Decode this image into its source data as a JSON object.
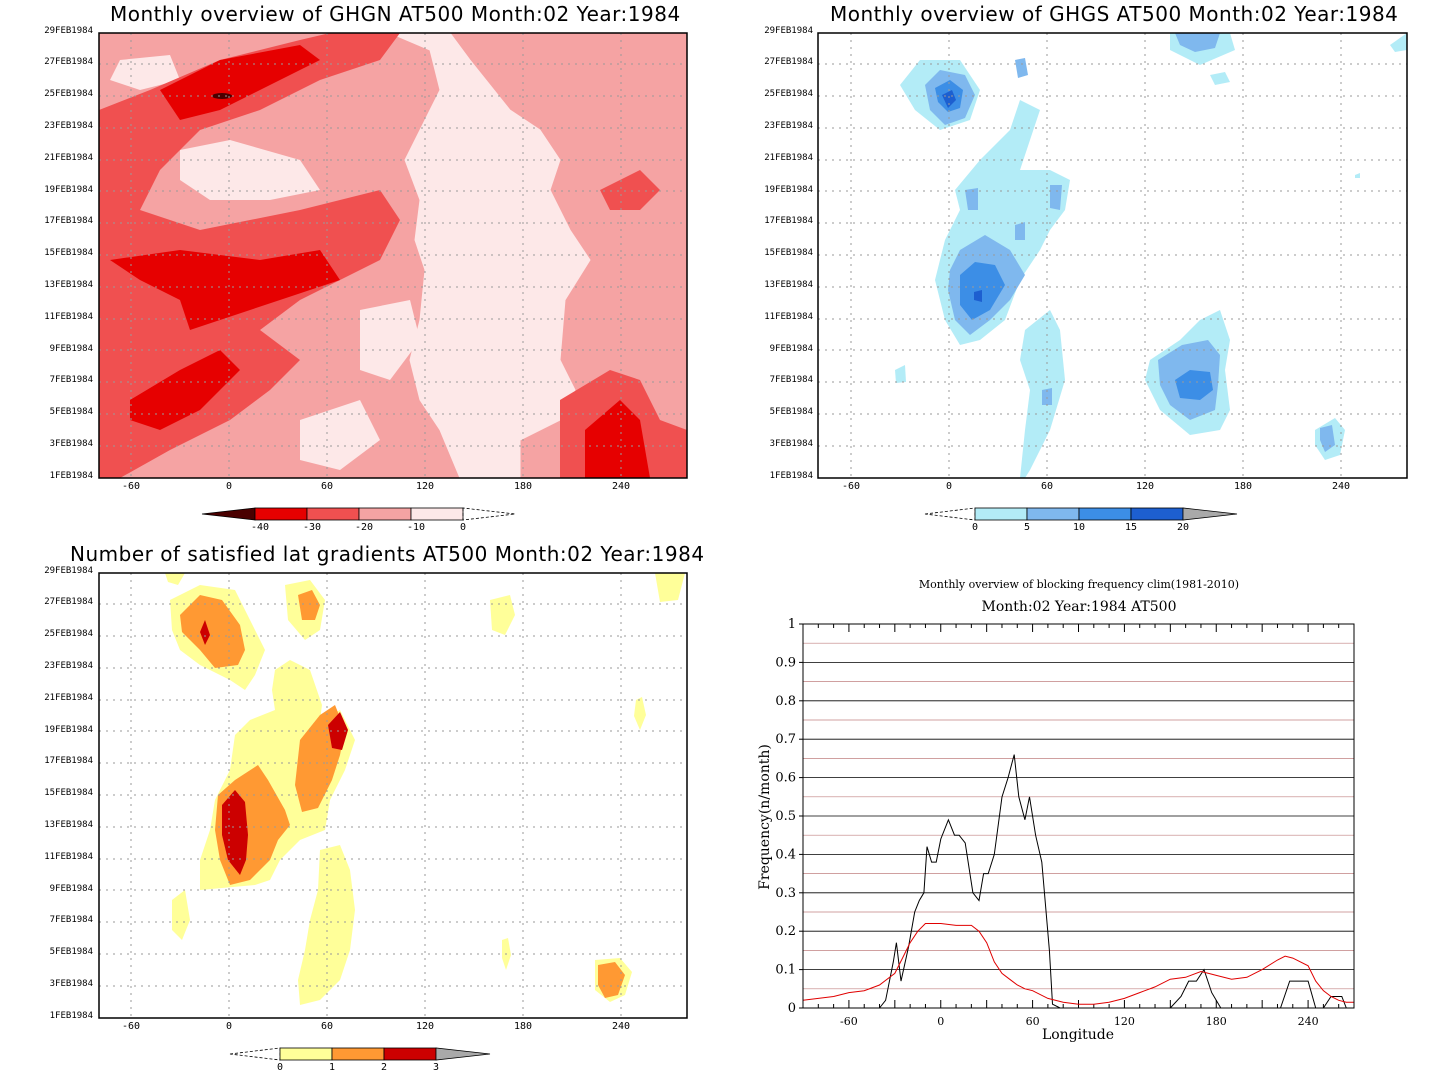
{
  "chart_data": [
    {
      "type": "heatmap",
      "title": "Monthly overview of GHGN AT500 Month:02 Year:1984",
      "xticks": [
        "-60",
        "0",
        "60",
        "120",
        "180",
        "240"
      ],
      "yticks": [
        "1FEB1984",
        "3FEB1984",
        "5FEB1984",
        "7FEB1984",
        "9FEB1984",
        "11FEB1984",
        "13FEB1984",
        "15FEB1984",
        "17FEB1984",
        "19FEB1984",
        "21FEB1984",
        "23FEB1984",
        "25FEB1984",
        "27FEB1984",
        "29FEB1984"
      ],
      "xlim": [
        -80,
        280
      ],
      "colorbar": {
        "labels": [
          "-40",
          "-30",
          "-20",
          "-10",
          "0"
        ],
        "colors": [
          "#4a0000",
          "#e60000",
          "#f05050",
          "#f5a3a3",
          "#fde8e8"
        ]
      }
    },
    {
      "type": "heatmap",
      "title": "Monthly overview of GHGS AT500 Month:02 Year:1984",
      "xticks": [
        "-60",
        "0",
        "60",
        "120",
        "180",
        "240"
      ],
      "yticks": [
        "1FEB1984",
        "3FEB1984",
        "5FEB1984",
        "7FEB1984",
        "9FEB1984",
        "11FEB1984",
        "13FEB1984",
        "15FEB1984",
        "17FEB1984",
        "19FEB1984",
        "21FEB1984",
        "23FEB1984",
        "25FEB1984",
        "27FEB1984",
        "29FEB1984"
      ],
      "xlim": [
        -80,
        280
      ],
      "colorbar": {
        "labels": [
          "0",
          "5",
          "10",
          "15",
          "20"
        ],
        "colors": [
          "#b3ecf7",
          "#7fb8ee",
          "#3c8ee6",
          "#1d5fd0",
          "#a9a9a9"
        ]
      }
    },
    {
      "type": "heatmap",
      "title": "Number of satisfied lat gradients AT500 Month:02 Year:1984",
      "xticks": [
        "-60",
        "0",
        "60",
        "120",
        "180",
        "240"
      ],
      "yticks": [
        "1FEB1984",
        "3FEB1984",
        "5FEB1984",
        "7FEB1984",
        "9FEB1984",
        "11FEB1984",
        "13FEB1984",
        "15FEB1984",
        "17FEB1984",
        "19FEB1984",
        "21FEB1984",
        "23FEB1984",
        "25FEB1984",
        "27FEB1984",
        "29FEB1984"
      ],
      "xlim": [
        -80,
        280
      ],
      "colorbar": {
        "labels": [
          "0",
          "1",
          "2",
          "3"
        ],
        "colors": [
          "#ffff99",
          "#ff9933",
          "#cc0000",
          "#a9a9a9"
        ]
      }
    },
    {
      "type": "line",
      "title": "Monthly overview of blocking frequency clim(1981-2010)",
      "subtitle": "Month:02 Year:1984  AT500",
      "xlabel": "Longitude",
      "ylabel": "Frequency(n/month)",
      "xlim": [
        -90,
        270
      ],
      "ylim": [
        0,
        1
      ],
      "xticks": [
        "-60",
        "0",
        "60",
        "120",
        "180",
        "240"
      ],
      "yticks": [
        "0",
        "0.1",
        "0.2",
        "0.3",
        "0.4",
        "0.5",
        "0.6",
        "0.7",
        "0.8",
        "0.9",
        "1"
      ],
      "grid": true,
      "series": [
        {
          "color": "#000000",
          "x": [
            -40,
            -36,
            -31,
            -29,
            -26,
            -21,
            -17,
            -14,
            -11,
            -9,
            -6,
            -3,
            0,
            5,
            9,
            12,
            16,
            21,
            25,
            28,
            31,
            35,
            40,
            44,
            48,
            51,
            55,
            58,
            62,
            66,
            71,
            73,
            78,
            90,
            110,
            130,
            150,
            157,
            162,
            167,
            172,
            177,
            183,
            200,
            215,
            222,
            228,
            235,
            240,
            245,
            250,
            255,
            258,
            262,
            265
          ],
          "y": [
            0,
            0.02,
            0.12,
            0.17,
            0.07,
            0.16,
            0.25,
            0.28,
            0.3,
            0.42,
            0.38,
            0.38,
            0.44,
            0.49,
            0.45,
            0.45,
            0.43,
            0.3,
            0.28,
            0.35,
            0.35,
            0.4,
            0.55,
            0.6,
            0.66,
            0.55,
            0.49,
            0.55,
            0.45,
            0.38,
            0.15,
            0.01,
            0,
            0,
            0,
            0,
            0,
            0.03,
            0.07,
            0.07,
            0.1,
            0.04,
            0,
            0,
            0,
            0,
            0.07,
            0.07,
            0.07,
            0,
            0,
            0.03,
            0.03,
            0.03,
            0
          ]
        },
        {
          "color": "#e00000",
          "x": [
            -90,
            -80,
            -70,
            -60,
            -50,
            -40,
            -30,
            -25,
            -20,
            -15,
            -10,
            -5,
            0,
            10,
            20,
            25,
            30,
            35,
            40,
            45,
            50,
            55,
            60,
            70,
            80,
            90,
            100,
            110,
            120,
            130,
            140,
            150,
            160,
            170,
            175,
            180,
            190,
            200,
            205,
            210,
            220,
            225,
            230,
            240,
            245,
            250,
            255,
            260,
            265,
            270
          ],
          "y": [
            0.02,
            0.025,
            0.03,
            0.04,
            0.045,
            0.06,
            0.09,
            0.13,
            0.17,
            0.2,
            0.22,
            0.22,
            0.22,
            0.215,
            0.215,
            0.2,
            0.17,
            0.12,
            0.09,
            0.075,
            0.06,
            0.05,
            0.045,
            0.025,
            0.015,
            0.01,
            0.01,
            0.015,
            0.025,
            0.04,
            0.055,
            0.075,
            0.08,
            0.095,
            0.09,
            0.085,
            0.075,
            0.08,
            0.09,
            0.1,
            0.125,
            0.135,
            0.13,
            0.11,
            0.07,
            0.045,
            0.03,
            0.02,
            0.015,
            0.015
          ]
        }
      ]
    }
  ]
}
